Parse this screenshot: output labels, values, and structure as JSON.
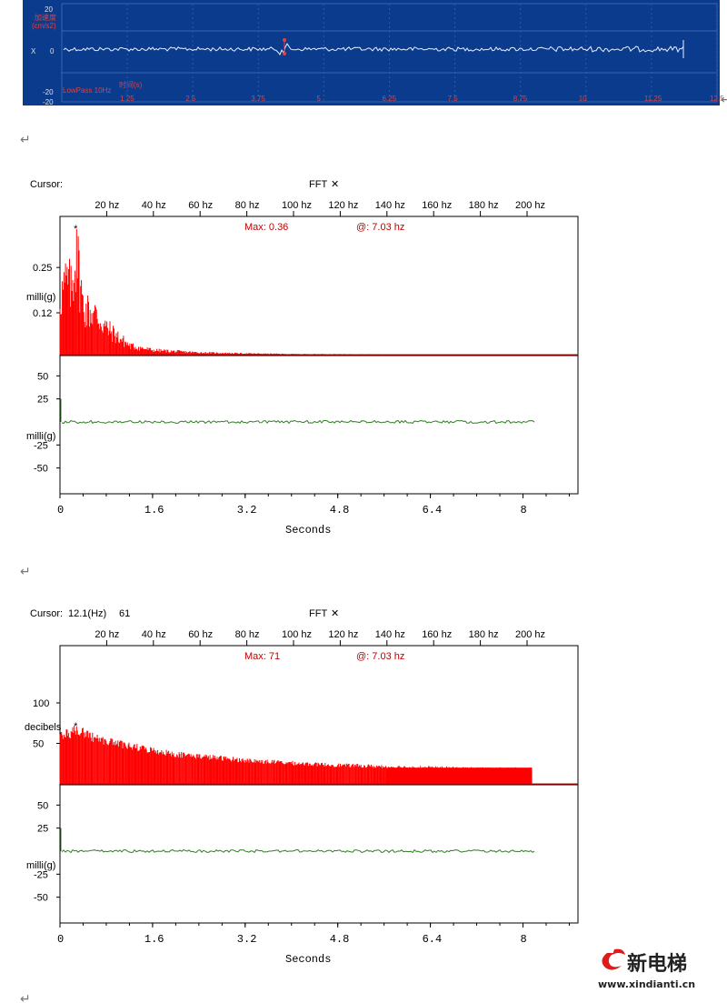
{
  "strip": {
    "y_top": "20",
    "y_zero": "0",
    "y_bottom": "-20",
    "y_bottom2": "-20",
    "x_marker": "X",
    "title_line1": "加速度",
    "title_line2": "(cm/s2)",
    "footer_left": "LowPass 10Hz",
    "footer_mid": "时间(s)",
    "x_ticks": [
      "1.25",
      "2.5",
      "3.75",
      "5",
      "6.25",
      "7.5",
      "8.75",
      "10",
      "11.25",
      "12.5"
    ],
    "colors": {
      "bg": "#0b3b8c",
      "trace": "#e8f0ff",
      "label": "#e04040"
    }
  },
  "return_marks": [
    "↵",
    "↵",
    "↵",
    "↵",
    "↵",
    "↵"
  ],
  "chart_data": [
    {
      "type": "area",
      "panel": "fft-1",
      "cursor_label": "Cursor:",
      "cursor_value": "",
      "cursor_extra": "",
      "title": "FFT",
      "close_glyph": "✕",
      "freq_ticks": [
        "20 hz",
        "40 hz",
        "60 hz",
        "80 hz",
        "100 hz",
        "120 hz",
        "140 hz",
        "160 hz",
        "180 hz",
        "200 hz"
      ],
      "max_label": "Max: 0.36",
      "at_label": "@: 7.03 hz",
      "marker": "*",
      "ylabel": "milli(g)",
      "y_ticks": [
        "0.25",
        "0.12"
      ],
      "y_values": [
        0.25,
        0.12
      ],
      "ylim": [
        0,
        0.36
      ],
      "peak_hz": 7.03,
      "peak_value": 0.36,
      "spectrum_profile": [
        {
          "hz": 0,
          "value": 0.2
        },
        {
          "hz": 3,
          "value": 0.25
        },
        {
          "hz": 5,
          "value": 0.22
        },
        {
          "hz": 7.03,
          "value": 0.36
        },
        {
          "hz": 10,
          "value": 0.16
        },
        {
          "hz": 15,
          "value": 0.14
        },
        {
          "hz": 20,
          "value": 0.09
        },
        {
          "hz": 30,
          "value": 0.03
        },
        {
          "hz": 40,
          "value": 0.015
        },
        {
          "hz": 60,
          "value": 0.007
        },
        {
          "hz": 80,
          "value": 0.004
        },
        {
          "hz": 100,
          "value": 0.002
        },
        {
          "hz": 205,
          "value": 0.0
        }
      ],
      "time_ylabel": "milli(g)",
      "time_y_ticks": [
        "50",
        "25",
        "-25",
        "-50"
      ],
      "time_y_values": [
        50,
        25,
        -25,
        -50
      ],
      "time_ylim": [
        -75,
        75
      ],
      "time_xlabel": "Seconds",
      "time_x_ticks": [
        "0",
        "1.6",
        "3.2",
        "4.8",
        "6.4",
        "8"
      ],
      "time_x_values": [
        0,
        1.6,
        3.2,
        4.8,
        6.4,
        8
      ],
      "time_xlim": [
        0,
        8.95
      ],
      "time_series_end": 8.2,
      "time_series_level": 0,
      "colors": {
        "spectrum": "#ff0000",
        "time": "#2e7d22",
        "text_red": "#c00000",
        "marker": "#1a1aff"
      }
    },
    {
      "type": "area",
      "panel": "fft-2",
      "cursor_label": "Cursor:",
      "cursor_value": "12.1(Hz)",
      "cursor_extra": "61",
      "title": "FFT",
      "close_glyph": "✕",
      "freq_ticks": [
        "20 hz",
        "40 hz",
        "60 hz",
        "80 hz",
        "100 hz",
        "120 hz",
        "140 hz",
        "160 hz",
        "180 hz",
        "200 hz"
      ],
      "max_label": "Max: 71",
      "at_label": "@: 7.03 hz",
      "marker": "*",
      "ylabel": "decibels",
      "y_ticks": [
        "100",
        "50"
      ],
      "y_values": [
        100,
        50
      ],
      "ylim": [
        0,
        155
      ],
      "peak_hz": 7.03,
      "peak_value": 71,
      "spectrum_profile": [
        {
          "hz": 0,
          "value": 62
        },
        {
          "hz": 5,
          "value": 65
        },
        {
          "hz": 7.03,
          "value": 71
        },
        {
          "hz": 15,
          "value": 58
        },
        {
          "hz": 30,
          "value": 48
        },
        {
          "hz": 50,
          "value": 38
        },
        {
          "hz": 80,
          "value": 30
        },
        {
          "hz": 110,
          "value": 25
        },
        {
          "hz": 140,
          "value": 22
        },
        {
          "hz": 170,
          "value": 20
        },
        {
          "hz": 202,
          "value": 19
        }
      ],
      "time_ylabel": "milli(g)",
      "time_y_ticks": [
        "50",
        "25",
        "-25",
        "-50"
      ],
      "time_y_values": [
        50,
        25,
        -25,
        -50
      ],
      "time_ylim": [
        -75,
        75
      ],
      "time_xlabel": "Seconds",
      "time_x_ticks": [
        "0",
        "1.6",
        "3.2",
        "4.8",
        "6.4",
        "8"
      ],
      "time_x_values": [
        0,
        1.6,
        3.2,
        4.8,
        6.4,
        8
      ],
      "time_xlim": [
        0,
        8.95
      ],
      "time_series_end": 8.2,
      "time_series_level": 0,
      "colors": {
        "spectrum": "#ff0000",
        "time": "#2e7d22",
        "text_red": "#c00000",
        "marker": "#1a1aff"
      }
    }
  ],
  "watermark": {
    "logo": "新电梯",
    "url": "www.xindianti.cn",
    "colors": {
      "logo": "#222222",
      "mark": "#e01a1a"
    }
  }
}
